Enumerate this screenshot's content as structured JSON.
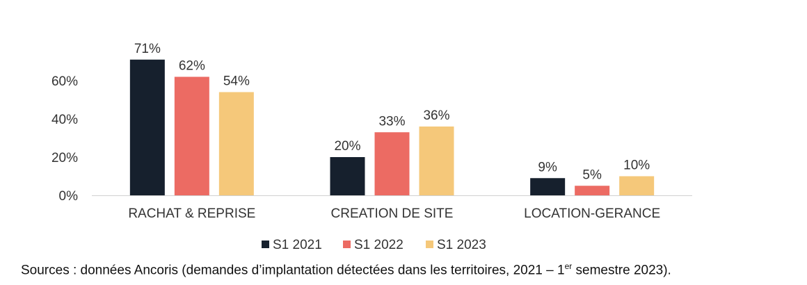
{
  "chart_data": {
    "type": "bar",
    "categories": [
      "RACHAT & REPRISE",
      "CREATION DE SITE",
      "LOCATION-GERANCE"
    ],
    "series": [
      {
        "name": "S1 2021",
        "values": [
          71,
          20,
          9
        ],
        "labels": [
          "71%",
          "20%",
          "9%"
        ],
        "color": "#16202d"
      },
      {
        "name": "S1 2022",
        "values": [
          62,
          33,
          5
        ],
        "labels": [
          "62%",
          "33%",
          "5%"
        ],
        "color": "#ec6b63"
      },
      {
        "name": "S1 2023",
        "values": [
          54,
          36,
          10
        ],
        "labels": [
          "54%",
          "36%",
          "10%"
        ],
        "color": "#f5c87a"
      }
    ],
    "ylim": [
      0,
      80
    ],
    "yticks": [
      0,
      20,
      40,
      60
    ],
    "ytick_labels": [
      "0%",
      "20%",
      "40%",
      "60%"
    ],
    "grid": false,
    "legend_position": "bottom",
    "title": "",
    "xlabel": "",
    "ylabel": ""
  },
  "source": {
    "text_before": "Sources : données Ancoris (demandes d’implantation détectées dans les territoires, 2021 – 1",
    "superscript": "er",
    "text_after": " semestre 2023)."
  }
}
